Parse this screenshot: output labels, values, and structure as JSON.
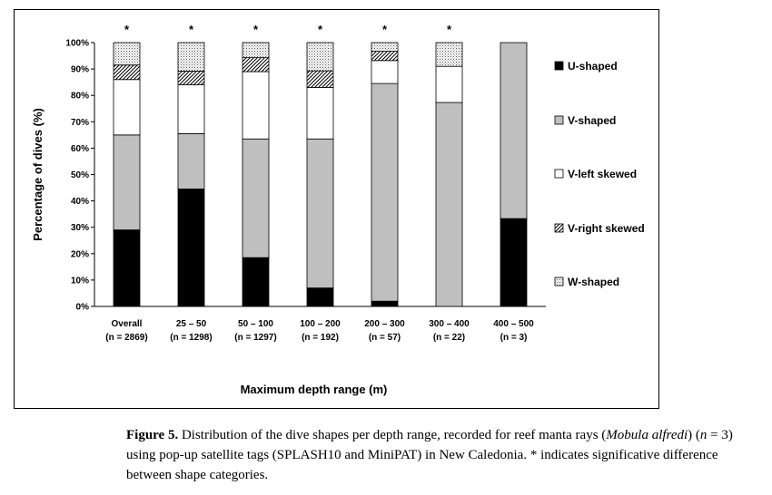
{
  "chart_data": {
    "type": "stacked-bar",
    "ylabel": "Percentage of dives (%)",
    "xlabel": "Maximum depth range (m)",
    "y_ticks": [
      "0%",
      "10%",
      "20%",
      "30%",
      "40%",
      "50%",
      "60%",
      "70%",
      "80%",
      "90%",
      "100%"
    ],
    "ylim": [
      0,
      100
    ],
    "categories": [
      "Overall",
      "25 – 50",
      "50 – 100",
      "100 – 200",
      "200 – 300",
      "300 – 400",
      "400 – 500"
    ],
    "sample_sizes": [
      "(n = 2869)",
      "(n = 1298)",
      "(n = 1297)",
      "(n = 192)",
      "(n = 57)",
      "(n = 22)",
      "(n = 3)"
    ],
    "significance": [
      "*",
      "*",
      "*",
      "*",
      "*",
      "*",
      ""
    ],
    "series": [
      {
        "name": "U-shaped",
        "pattern": "solid-black",
        "values": [
          29,
          44.5,
          18.5,
          7,
          2,
          0,
          33.3
        ]
      },
      {
        "name": "V-shaped",
        "pattern": "solid-gray",
        "values": [
          36,
          21,
          45,
          56.5,
          82.5,
          77.3,
          66.7
        ]
      },
      {
        "name": "V-left skewed",
        "pattern": "white",
        "values": [
          21,
          18.5,
          25.5,
          19.5,
          8.7,
          13.7,
          0
        ]
      },
      {
        "name": "V-right skewed",
        "pattern": "diagonal-hatch",
        "values": [
          5.5,
          5.2,
          5.3,
          6.3,
          3.5,
          0,
          0
        ]
      },
      {
        "name": "W-shaped",
        "pattern": "dotted",
        "values": [
          8.5,
          10.8,
          5.7,
          10.7,
          3.3,
          9,
          0
        ]
      }
    ]
  },
  "caption": {
    "label": "Figure 5.",
    "text_1": " Distribution of the dive shapes per depth range, recorded for reef manta rays (",
    "species": "Mobula alfredi",
    "text_2": ") (",
    "n_var": "n",
    "text_3": " = 3) using pop-up satellite tags (SPLASH10 and MiniPAT) in New Caledonia. * indicates significative difference between shape categories."
  }
}
